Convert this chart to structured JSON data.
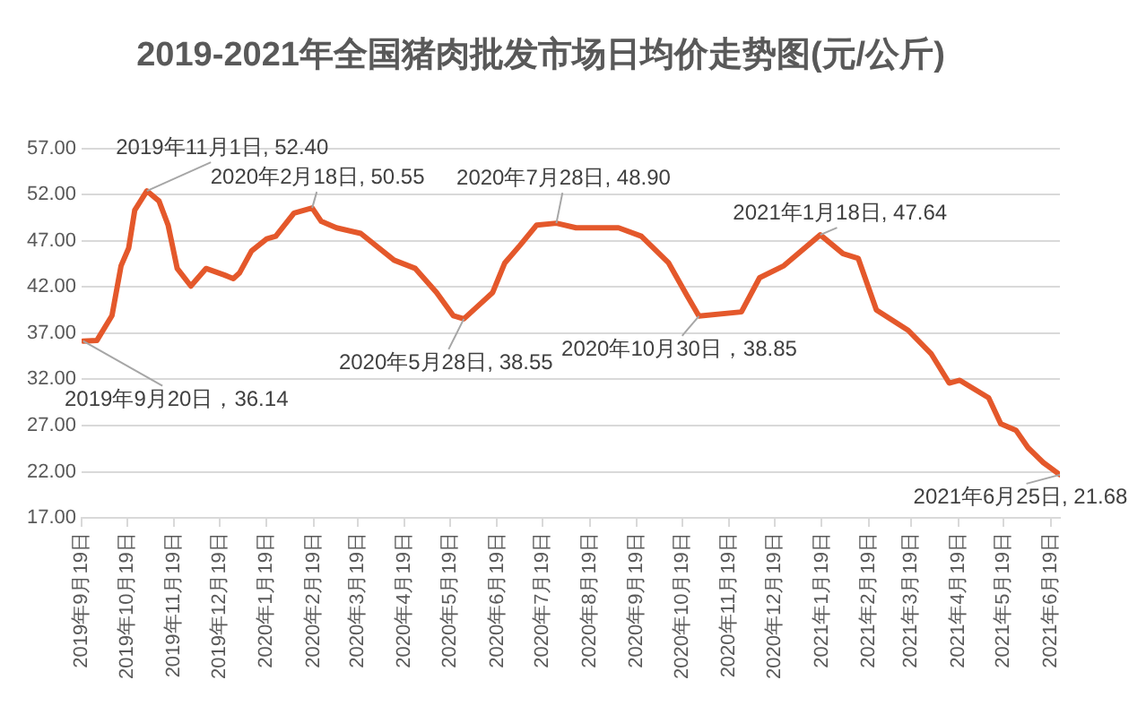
{
  "chart_data": {
    "type": "line",
    "title": "2019-2021年全国猪肉批发市场日均价走势图(元/公斤)",
    "x": [
      "2019-09-20",
      "2019-09-29",
      "2019-10-09",
      "2019-10-15",
      "2019-10-20",
      "2019-10-24",
      "2019-11-01",
      "2019-11-09",
      "2019-11-15",
      "2019-11-21",
      "2019-11-30",
      "2019-12-10",
      "2019-12-22",
      "2019-12-28",
      "2020-01-01",
      "2020-01-09",
      "2020-01-19",
      "2020-01-25",
      "2020-02-06",
      "2020-02-18",
      "2020-02-24",
      "2020-03-05",
      "2020-03-21",
      "2020-04-12",
      "2020-04-26",
      "2020-05-10",
      "2020-05-21",
      "2020-05-28",
      "2020-06-08",
      "2020-06-16",
      "2020-06-24",
      "2020-07-04",
      "2020-07-15",
      "2020-07-28",
      "2020-08-10",
      "2020-09-07",
      "2020-09-22",
      "2020-10-10",
      "2020-10-22",
      "2020-10-30",
      "2020-11-27",
      "2020-12-09",
      "2020-12-25",
      "2021-01-18",
      "2021-02-02",
      "2021-02-12",
      "2021-02-24",
      "2021-03-17",
      "2021-04-01",
      "2021-04-13",
      "2021-04-20",
      "2021-05-09",
      "2021-05-17",
      "2021-05-27",
      "2021-06-04",
      "2021-06-14",
      "2021-06-25"
    ],
    "series": [
      {
        "color": "#e4582b",
        "values": [
          36.14,
          36.2,
          38.9,
          44.3,
          46.2,
          50.3,
          52.4,
          51.3,
          48.7,
          44,
          42.1,
          44,
          43.3,
          42.9,
          43.5,
          45.9,
          47.2,
          47.5,
          50,
          50.55,
          49.1,
          48.4,
          47.8,
          44.9,
          44,
          41.4,
          38.9,
          38.55,
          40.2,
          41.4,
          44.6,
          46.5,
          48.7,
          48.9,
          48.4,
          48.4,
          47.5,
          44.6,
          41.1,
          38.85,
          39.3,
          43,
          44.3,
          47.64,
          45.6,
          45.1,
          39.5,
          37.3,
          34.8,
          31.6,
          31.9,
          30,
          27.2,
          26.5,
          24.6,
          23,
          21.68
        ]
      }
    ],
    "xlim": [
      "2019-09-19",
      "2021-06-25"
    ],
    "xticks": [
      {
        "value": "2019-09-19",
        "label": "2019年9月19日"
      },
      {
        "value": "2019-10-19",
        "label": "2019年10月19日"
      },
      {
        "value": "2019-11-19",
        "label": "2019年11月19日"
      },
      {
        "value": "2019-12-19",
        "label": "2019年12月19日"
      },
      {
        "value": "2020-01-19",
        "label": "2020年1月19日"
      },
      {
        "value": "2020-02-19",
        "label": "2020年2月19日"
      },
      {
        "value": "2020-03-19",
        "label": "2020年3月19日"
      },
      {
        "value": "2020-04-19",
        "label": "2020年4月19日"
      },
      {
        "value": "2020-05-19",
        "label": "2020年5月19日"
      },
      {
        "value": "2020-06-19",
        "label": "2020年6月19日"
      },
      {
        "value": "2020-07-19",
        "label": "2020年7月19日"
      },
      {
        "value": "2020-08-19",
        "label": "2020年8月19日"
      },
      {
        "value": "2020-09-19",
        "label": "2020年9月19日"
      },
      {
        "value": "2020-10-19",
        "label": "2020年10月19日"
      },
      {
        "value": "2020-11-19",
        "label": "2020年11月19日"
      },
      {
        "value": "2020-12-19",
        "label": "2020年12月19日"
      },
      {
        "value": "2021-01-19",
        "label": "2021年1月19日"
      },
      {
        "value": "2021-02-19",
        "label": "2021年2月19日"
      },
      {
        "value": "2021-03-19",
        "label": "2021年3月19日"
      },
      {
        "value": "2021-04-19",
        "label": "2021年4月19日"
      },
      {
        "value": "2021-05-19",
        "label": "2021年5月19日"
      },
      {
        "value": "2021-06-19",
        "label": "2021年6月19日"
      }
    ],
    "ylim": [
      17,
      57
    ],
    "yticks": [
      {
        "value": 17,
        "label": "17.00"
      },
      {
        "value": 22,
        "label": "22.00"
      },
      {
        "value": 27,
        "label": "27.00"
      },
      {
        "value": 32,
        "label": "32.00"
      },
      {
        "value": 37,
        "label": "37.00"
      },
      {
        "value": 42,
        "label": "42.00"
      },
      {
        "value": 47,
        "label": "47.00"
      },
      {
        "value": 52,
        "label": "52.00"
      },
      {
        "value": 57,
        "label": "57.00"
      }
    ],
    "grid": "y",
    "legend": false,
    "marker": "none",
    "line_style": "solid",
    "annotations": [
      {
        "text": "2019年9月20日，36.14",
        "x": "2019-09-20",
        "y": 36.14
      },
      {
        "text": "2019年11月1日, 52.40",
        "x": "2019-11-01",
        "y": 52.4
      },
      {
        "text": "2020年2月18日, 50.55",
        "x": "2020-02-18",
        "y": 50.55
      },
      {
        "text": "2020年5月28日, 38.55",
        "x": "2020-05-28",
        "y": 38.55
      },
      {
        "text": "2020年7月28日, 48.90",
        "x": "2020-07-28",
        "y": 48.9
      },
      {
        "text": "2020年10月30日，38.85",
        "x": "2020-10-30",
        "y": 38.85
      },
      {
        "text": "2021年1月18日, 47.64",
        "x": "2021-01-18",
        "y": 47.64
      },
      {
        "text": "2021年6月25日, 21.68",
        "x": "2021-06-25",
        "y": 21.68
      }
    ]
  }
}
